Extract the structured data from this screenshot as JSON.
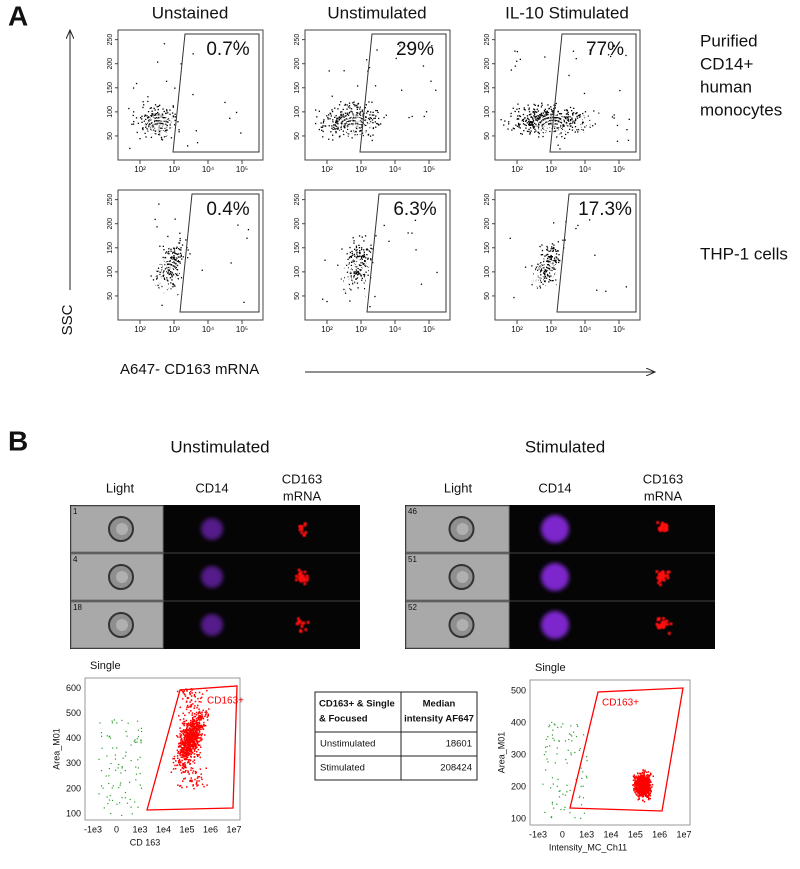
{
  "panel_a": {
    "label": "A",
    "columns": [
      "Unstained",
      "Unstimulated",
      "IL-10 Stimulated"
    ],
    "rows": [
      {
        "label": [
          "Purified",
          "CD14+",
          "human",
          "monocytes"
        ],
        "percentages": [
          "0.7%",
          "29%",
          "77%"
        ]
      },
      {
        "label": [
          "THP-1 cells"
        ],
        "percentages": [
          "0.4%",
          "6.3%",
          "17.3%"
        ]
      }
    ],
    "x_ticks": [
      "10²",
      "10³",
      "10⁴",
      "10⁵"
    ],
    "y_ticks": [
      50,
      100,
      150,
      200,
      250
    ],
    "y_axis_label": "SSC",
    "x_axis_label": "A647- CD163 mRNA"
  },
  "panel_b": {
    "label": "B",
    "groups": [
      {
        "title": "Unstimulated",
        "channels": [
          "Light",
          "CD14",
          [
            "CD163",
            "mRNA"
          ]
        ],
        "cell_ids": [
          "1",
          "4",
          "18"
        ],
        "plot": {
          "title": "Single",
          "y_label": "Area_M01",
          "x_label": "CD 163",
          "gate": "CD163+",
          "y_ticks": [
            100,
            200,
            300,
            400,
            500,
            600
          ],
          "x_ticks": [
            "-1e3",
            "0",
            "1e3",
            "1e4",
            "1e5",
            "1e6",
            "1e7"
          ]
        }
      },
      {
        "title": "Stimulated",
        "channels": [
          "Light",
          "CD14",
          [
            "CD163",
            "mRNA"
          ]
        ],
        "cell_ids": [
          "46",
          "51",
          "52"
        ],
        "plot": {
          "title": "Single",
          "y_label": "Area_M01",
          "x_label": "Intensity_MC_Ch11",
          "gate": "CD163+",
          "y_ticks": [
            100,
            200,
            300,
            400,
            500
          ],
          "x_ticks": [
            "-1e3",
            "0",
            "1e3",
            "1e4",
            "1e5",
            "1e6",
            "1e7"
          ]
        }
      }
    ],
    "table": {
      "header": [
        [
          "CD163+ & Single",
          "& Focused"
        ],
        [
          "Median",
          "intensity AF647"
        ]
      ],
      "rows": [
        [
          "Unstimulated",
          18601
        ],
        [
          "Stimulated",
          208424
        ]
      ]
    }
  }
}
